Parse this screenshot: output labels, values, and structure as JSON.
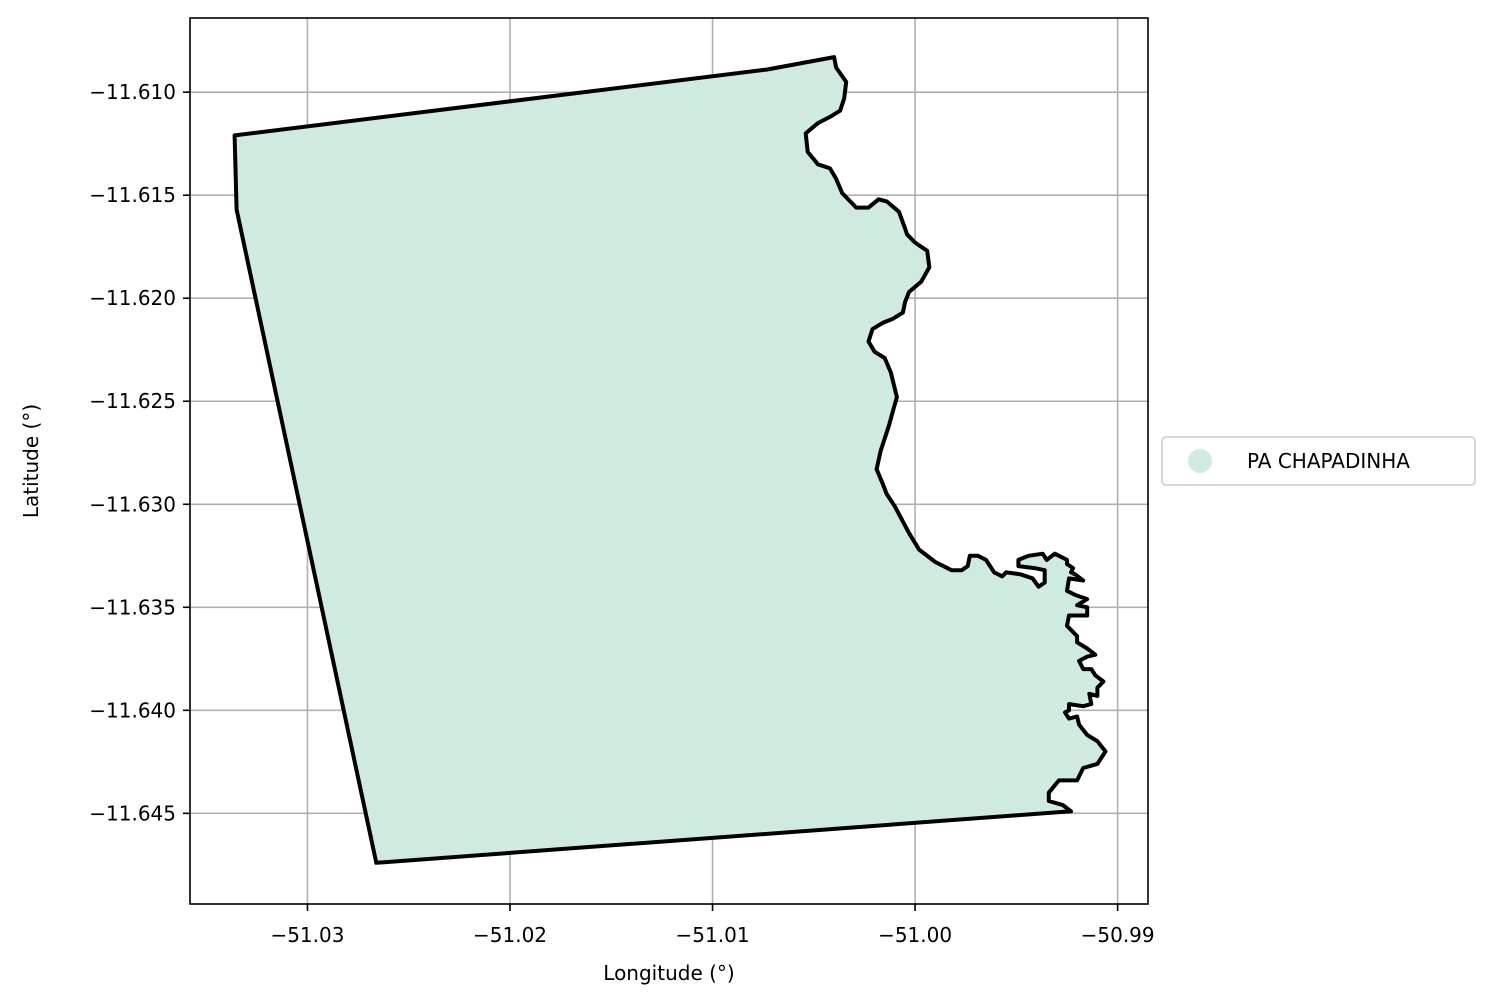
{
  "chart_data": {
    "type": "map",
    "xlabel": "Longitude (°)",
    "ylabel": "Latitude (°)",
    "xlim": [
      -51.0358,
      -50.9885
    ],
    "ylim": [
      -11.6494,
      -11.6064
    ],
    "xticks": [
      -51.03,
      -51.02,
      -51.01,
      -51.0,
      -50.99
    ],
    "xtick_labels": [
      "−51.03",
      "−51.02",
      "−51.01",
      "−51.00",
      "−50.99"
    ],
    "yticks": [
      -11.61,
      -11.615,
      -11.62,
      -11.625,
      -11.63,
      -11.635,
      -11.64,
      -11.645
    ],
    "ytick_labels": [
      "−11.610",
      "−11.615",
      "−11.620",
      "−11.625",
      "−11.630",
      "−11.635",
      "−11.640",
      "−11.645"
    ],
    "grid": true,
    "legend": {
      "placement": "right-outside-center",
      "entries": [
        {
          "label": "PA CHAPADINHA",
          "color": "#cfebdf"
        }
      ]
    },
    "polygon": {
      "name": "PA CHAPADINHA",
      "fill": "#cfebdf",
      "stroke": "#000000",
      "coordinates": [
        [
          -51.0336,
          -11.6121
        ],
        [
          -51.0335,
          -11.6157
        ],
        [
          -51.0266,
          -11.6474
        ],
        [
          -50.9923,
          -11.6449
        ],
        [
          -50.9927,
          -11.6446
        ],
        [
          -50.9934,
          -11.6444
        ],
        [
          -50.9934,
          -11.644
        ],
        [
          -50.9929,
          -11.6434
        ],
        [
          -50.992,
          -11.6434
        ],
        [
          -50.9917,
          -11.6428
        ],
        [
          -50.991,
          -11.6426
        ],
        [
          -50.9906,
          -11.642
        ],
        [
          -50.991,
          -11.6415
        ],
        [
          -50.9915,
          -11.6412
        ],
        [
          -50.9919,
          -11.6407
        ],
        [
          -50.992,
          -11.6403
        ],
        [
          -50.9924,
          -11.6404
        ],
        [
          -50.9926,
          -11.6401
        ],
        [
          -50.9924,
          -11.64
        ],
        [
          -50.9924,
          -11.6397
        ],
        [
          -50.9917,
          -11.6398
        ],
        [
          -50.9913,
          -11.6397
        ],
        [
          -50.9914,
          -11.6392
        ],
        [
          -50.991,
          -11.6393
        ],
        [
          -50.991,
          -11.6389
        ],
        [
          -50.9907,
          -11.6386
        ],
        [
          -50.9911,
          -11.6383
        ],
        [
          -50.9913,
          -11.638
        ],
        [
          -50.9917,
          -11.638
        ],
        [
          -50.9919,
          -11.6376
        ],
        [
          -50.9915,
          -11.6374
        ],
        [
          -50.9911,
          -11.6373
        ],
        [
          -50.9915,
          -11.637
        ],
        [
          -50.992,
          -11.6367
        ],
        [
          -50.992,
          -11.6364
        ],
        [
          -50.9925,
          -11.6359
        ],
        [
          -50.9924,
          -11.6354
        ],
        [
          -50.9915,
          -11.6354
        ],
        [
          -50.9915,
          -11.635
        ],
        [
          -50.992,
          -11.6349
        ],
        [
          -50.9915,
          -11.6346
        ],
        [
          -50.9921,
          -11.6344
        ],
        [
          -50.9925,
          -11.6342
        ],
        [
          -50.9924,
          -11.6336
        ],
        [
          -50.9917,
          -11.6337
        ],
        [
          -50.9921,
          -11.6334
        ],
        [
          -50.9923,
          -11.6333
        ],
        [
          -50.9922,
          -11.6331
        ],
        [
          -50.9925,
          -11.6329
        ],
        [
          -50.9925,
          -11.6327
        ],
        [
          -50.9931,
          -11.6324
        ],
        [
          -50.9935,
          -11.6327
        ],
        [
          -50.9937,
          -11.6324
        ],
        [
          -50.9944,
          -11.6325
        ],
        [
          -50.9949,
          -11.6327
        ],
        [
          -50.9949,
          -11.633
        ],
        [
          -50.9941,
          -11.6331
        ],
        [
          -50.9936,
          -11.6332
        ],
        [
          -50.9936,
          -11.6338
        ],
        [
          -50.9939,
          -11.634
        ],
        [
          -50.9942,
          -11.6336
        ],
        [
          -50.9948,
          -11.6334
        ],
        [
          -50.9955,
          -11.6333
        ],
        [
          -50.9957,
          -11.6335
        ],
        [
          -50.9961,
          -11.6333
        ],
        [
          -50.9965,
          -11.6327
        ],
        [
          -50.9969,
          -11.6325
        ],
        [
          -50.9973,
          -11.6325
        ],
        [
          -50.9974,
          -11.633
        ],
        [
          -50.9977,
          -11.6332
        ],
        [
          -50.9982,
          -11.6332
        ],
        [
          -50.999,
          -11.6328
        ],
        [
          -50.9998,
          -11.6322
        ],
        [
          -51.0003,
          -11.6314
        ],
        [
          -51.001,
          -11.6301
        ],
        [
          -51.0014,
          -11.6295
        ],
        [
          -51.0016,
          -11.629
        ],
        [
          -51.0019,
          -11.6283
        ],
        [
          -51.0017,
          -11.6274
        ],
        [
          -51.0013,
          -11.6262
        ],
        [
          -51.0011,
          -11.6255
        ],
        [
          -51.0009,
          -11.6248
        ],
        [
          -51.0012,
          -11.6236
        ],
        [
          -51.0015,
          -11.6229
        ],
        [
          -51.002,
          -11.6226
        ],
        [
          -51.0023,
          -11.6221
        ],
        [
          -51.0021,
          -11.6215
        ],
        [
          -51.0016,
          -11.6212
        ],
        [
          -51.0011,
          -11.621
        ],
        [
          -51.0006,
          -11.6207
        ],
        [
          -51.0005,
          -11.6202
        ],
        [
          -51.0003,
          -11.6197
        ],
        [
          -50.9997,
          -11.6192
        ],
        [
          -50.9993,
          -11.6185
        ],
        [
          -50.9994,
          -11.6177
        ],
        [
          -51.0,
          -11.6173
        ],
        [
          -51.0004,
          -11.6169
        ],
        [
          -51.0005,
          -11.6166
        ],
        [
          -51.0008,
          -11.6158
        ],
        [
          -51.0014,
          -11.6153
        ],
        [
          -51.0018,
          -11.6152
        ],
        [
          -51.0023,
          -11.6156
        ],
        [
          -51.0029,
          -11.6156
        ],
        [
          -51.0036,
          -11.6149
        ],
        [
          -51.0039,
          -11.6142
        ],
        [
          -51.0042,
          -11.6137
        ],
        [
          -51.0048,
          -11.6135
        ],
        [
          -51.0053,
          -11.6129
        ],
        [
          -51.0054,
          -11.612
        ],
        [
          -51.0048,
          -11.6115
        ],
        [
          -51.0042,
          -11.6112
        ],
        [
          -51.0037,
          -11.6109
        ],
        [
          -51.0035,
          -11.6103
        ],
        [
          -51.0034,
          -11.6095
        ],
        [
          -51.0039,
          -11.6088
        ],
        [
          -51.004,
          -11.6083
        ],
        [
          -51.0073,
          -11.6089
        ],
        [
          -51.0336,
          -11.6121
        ]
      ]
    }
  }
}
